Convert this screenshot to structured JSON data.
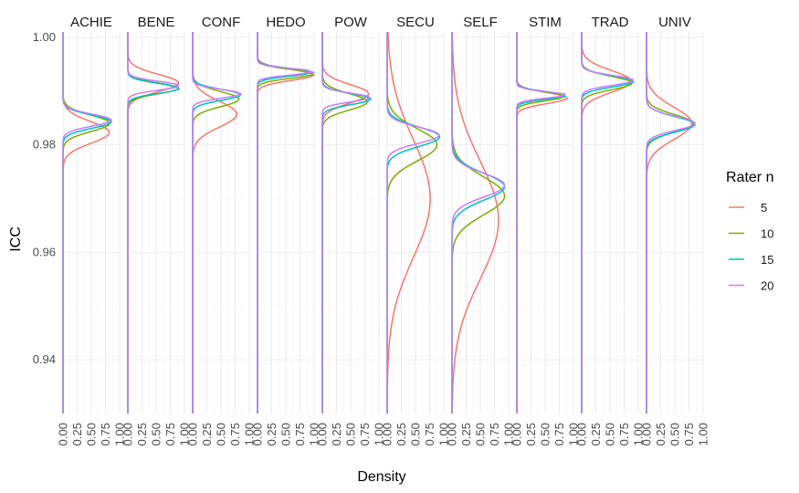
{
  "chart_data": {
    "type": "line",
    "title": "",
    "xlabel": "Density",
    "ylabel": "ICC",
    "ylim": [
      0.93,
      1.001
    ],
    "xlim": [
      0,
      1
    ],
    "x_ticks": [
      "0.00",
      "0.25",
      "0.50",
      "0.75",
      "1.00"
    ],
    "y_ticks": [
      "0.94",
      "0.96",
      "0.98",
      "1.00"
    ],
    "y_tick_values": [
      0.94,
      0.96,
      0.98,
      1.0
    ],
    "facets": [
      "ACHIE",
      "BENE",
      "CONF",
      "HEDO",
      "POW",
      "SECU",
      "SELF",
      "STIM",
      "TRAD",
      "UNIV"
    ],
    "legend": {
      "title": "Rater n",
      "position": "right",
      "items": [
        {
          "label": "5",
          "color": "#F8766D"
        },
        {
          "label": "10",
          "color": "#7CAE00"
        },
        {
          "label": "15",
          "color": "#00BFC4"
        },
        {
          "label": "20",
          "color": "#C77CFF"
        }
      ]
    },
    "grid": true,
    "distributions": {
      "ACHIE": [
        {
          "mean": 0.9823,
          "sd": 0.002,
          "peak": 0.82
        },
        {
          "mean": 0.984,
          "sd": 0.0015,
          "peak": 0.83
        },
        {
          "mean": 0.9843,
          "sd": 0.0012,
          "peak": 0.86
        },
        {
          "mean": 0.9846,
          "sd": 0.0011,
          "peak": 0.86
        }
      ],
      "BENE": [
        {
          "mean": 0.9915,
          "sd": 0.0016,
          "peak": 0.9
        },
        {
          "mean": 0.9905,
          "sd": 0.001,
          "peak": 0.9
        },
        {
          "mean": 0.9905,
          "sd": 0.0009,
          "peak": 0.92
        },
        {
          "mean": 0.991,
          "sd": 0.0008,
          "peak": 0.92
        }
      ],
      "CONF": [
        {
          "mean": 0.9857,
          "sd": 0.0024,
          "peak": 0.78
        },
        {
          "mean": 0.9885,
          "sd": 0.0014,
          "peak": 0.82
        },
        {
          "mean": 0.9893,
          "sd": 0.001,
          "peak": 0.86
        },
        {
          "mean": 0.9895,
          "sd": 0.0008,
          "peak": 0.86
        }
      ],
      "HEDO": [
        {
          "mean": 0.993,
          "sd": 0.001,
          "peak": 1.0
        },
        {
          "mean": 0.9932,
          "sd": 0.0008,
          "peak": 1.0
        },
        {
          "mean": 0.9935,
          "sd": 0.0007,
          "peak": 1.0
        },
        {
          "mean": 0.9936,
          "sd": 0.0006,
          "peak": 1.0
        }
      ],
      "POW": [
        {
          "mean": 0.9895,
          "sd": 0.0017,
          "peak": 0.82
        },
        {
          "mean": 0.988,
          "sd": 0.0015,
          "peak": 0.8
        },
        {
          "mean": 0.9885,
          "sd": 0.001,
          "peak": 0.86
        },
        {
          "mean": 0.9888,
          "sd": 0.0008,
          "peak": 0.85
        }
      ],
      "SECU": [
        {
          "mean": 0.97,
          "sd": 0.011,
          "peak": 0.76
        },
        {
          "mean": 0.98,
          "sd": 0.003,
          "peak": 0.88
        },
        {
          "mean": 0.9815,
          "sd": 0.0018,
          "peak": 0.93
        },
        {
          "mean": 0.9818,
          "sd": 0.0015,
          "peak": 0.92
        }
      ],
      "SELF": [
        {
          "mean": 0.966,
          "sd": 0.011,
          "peak": 0.82
        },
        {
          "mean": 0.9705,
          "sd": 0.0035,
          "peak": 0.93
        },
        {
          "mean": 0.9722,
          "sd": 0.0025,
          "peak": 0.93
        },
        {
          "mean": 0.9725,
          "sd": 0.0022,
          "peak": 0.93
        }
      ],
      "STIM": [
        {
          "mean": 0.9887,
          "sd": 0.001,
          "peak": 0.9
        },
        {
          "mean": 0.989,
          "sd": 0.0008,
          "peak": 0.85
        },
        {
          "mean": 0.9892,
          "sd": 0.0007,
          "peak": 0.88
        },
        {
          "mean": 0.9893,
          "sd": 0.0006,
          "peak": 0.88
        }
      ],
      "TRAD": [
        {
          "mean": 0.9918,
          "sd": 0.002,
          "peak": 0.88
        },
        {
          "mean": 0.9915,
          "sd": 0.0012,
          "peak": 0.9
        },
        {
          "mean": 0.9918,
          "sd": 0.001,
          "peak": 0.92
        },
        {
          "mean": 0.992,
          "sd": 0.0009,
          "peak": 0.92
        }
      ],
      "UNIV": [
        {
          "mean": 0.984,
          "sd": 0.003,
          "peak": 0.8
        },
        {
          "mean": 0.984,
          "sd": 0.0016,
          "peak": 0.83
        },
        {
          "mean": 0.9838,
          "sd": 0.0014,
          "peak": 0.86
        },
        {
          "mean": 0.984,
          "sd": 0.0013,
          "peak": 0.86
        }
      ]
    }
  }
}
